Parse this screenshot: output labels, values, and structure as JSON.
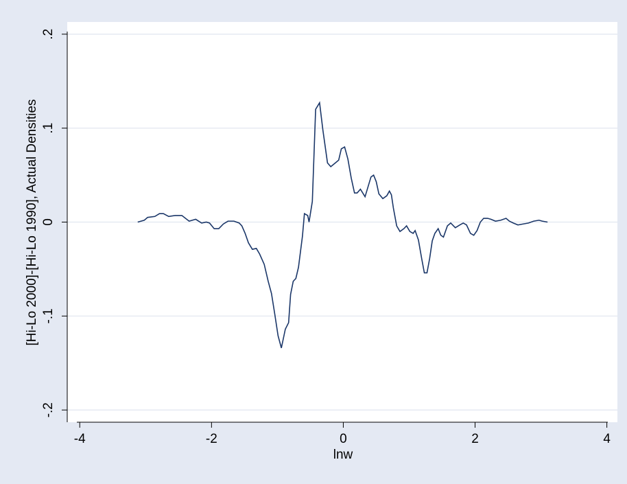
{
  "chart_data": {
    "type": "line",
    "x_label": "lnw",
    "y_label": "[Hi-Lo 2000]-[Hi-Lo 1990], Actual Densities",
    "x": [
      -3.12,
      -3.02,
      -2.97,
      -2.86,
      -2.79,
      -2.73,
      -2.65,
      -2.55,
      -2.45,
      -2.34,
      -2.24,
      -2.15,
      -2.08,
      -2.03,
      -1.96,
      -1.89,
      -1.82,
      -1.75,
      -1.66,
      -1.58,
      -1.54,
      -1.49,
      -1.44,
      -1.38,
      -1.32,
      -1.27,
      -1.2,
      -1.14,
      -1.09,
      -1.04,
      -0.99,
      -0.94,
      -0.88,
      -0.83,
      -0.8,
      -0.76,
      -0.72,
      -0.68,
      -0.62,
      -0.59,
      -0.54,
      -0.52,
      -0.47,
      -0.42,
      -0.36,
      -0.31,
      -0.24,
      -0.19,
      -0.12,
      -0.07,
      -0.03,
      0.02,
      0.07,
      0.12,
      0.17,
      0.21,
      0.26,
      0.33,
      0.42,
      0.46,
      0.5,
      0.54,
      0.6,
      0.66,
      0.7,
      0.73,
      0.76,
      0.81,
      0.86,
      0.92,
      0.96,
      1.01,
      1.06,
      1.09,
      1.14,
      1.19,
      1.23,
      1.27,
      1.31,
      1.35,
      1.39,
      1.44,
      1.48,
      1.52,
      1.58,
      1.63,
      1.7,
      1.77,
      1.82,
      1.87,
      1.93,
      1.98,
      2.03,
      2.08,
      2.13,
      2.19,
      2.24,
      2.31,
      2.39,
      2.47,
      2.52,
      2.58,
      2.65,
      2.73,
      2.81,
      2.89,
      2.97,
      3.02,
      3.1
    ],
    "values": [
      0,
      0.002,
      0.005,
      0.006,
      0.009,
      0.009,
      0.006,
      0.007,
      0.007,
      0.001,
      0.003,
      -0.001,
      0,
      -0.001,
      -0.007,
      -0.007,
      -0.002,
      0.001,
      0.001,
      -0.001,
      -0.004,
      -0.012,
      -0.022,
      -0.029,
      -0.028,
      -0.034,
      -0.045,
      -0.063,
      -0.076,
      -0.098,
      -0.121,
      -0.134,
      -0.114,
      -0.107,
      -0.077,
      -0.063,
      -0.06,
      -0.048,
      -0.015,
      0.009,
      0.007,
      0,
      0.022,
      0.12,
      0.127,
      0.098,
      0.063,
      0.059,
      0.063,
      0.066,
      0.078,
      0.08,
      0.067,
      0.047,
      0.031,
      0.031,
      0.035,
      0.027,
      0.048,
      0.05,
      0.043,
      0.03,
      0.025,
      0.028,
      0.033,
      0.029,
      0.015,
      -0.004,
      -0.01,
      -0.007,
      -0.004,
      -0.01,
      -0.012,
      -0.009,
      -0.019,
      -0.039,
      -0.054,
      -0.054,
      -0.039,
      -0.02,
      -0.012,
      -0.007,
      -0.014,
      -0.016,
      -0.004,
      -0.001,
      -0.006,
      -0.003,
      -0.001,
      -0.003,
      -0.012,
      -0.014,
      -0.009,
      0,
      0.004,
      0.004,
      0.003,
      0.001,
      0.002,
      0.004,
      0.001,
      -0.001,
      -0.003,
      -0.002,
      -0.001,
      0.001,
      0.002,
      0.001,
      0
    ],
    "color": "#1a3668",
    "xlim": [
      -4.19,
      4.16
    ],
    "xticks": [
      -4,
      -2,
      0,
      2,
      4
    ],
    "ylim": [
      -0.213,
      0.213
    ],
    "yticks": [
      {
        "value": -0.2,
        "label": "-.2"
      },
      {
        "value": -0.1,
        "label": "-.1"
      },
      0,
      {
        "value": 0.1,
        "label": ".1"
      },
      {
        "value": 0.2,
        "label": ".2"
      }
    ],
    "grid": true
  }
}
